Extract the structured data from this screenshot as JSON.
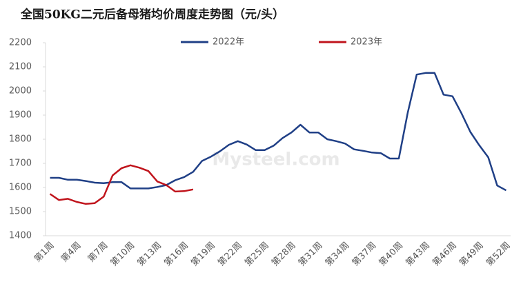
{
  "chart_data": {
    "type": "line",
    "title": "全国50KG二元后备母猪均价周度走势图（元/头）",
    "categories": [
      "第1周",
      null,
      null,
      "第4周",
      null,
      null,
      "第7周",
      null,
      null,
      "第10周",
      null,
      null,
      "第13周",
      null,
      null,
      "第16周",
      null,
      null,
      "第19周",
      null,
      null,
      "第22周",
      null,
      null,
      "第25周",
      null,
      null,
      "第28周",
      null,
      null,
      "第31周",
      null,
      null,
      "第34周",
      null,
      null,
      "第37周",
      null,
      null,
      "第40周",
      null,
      null,
      "第43周",
      null,
      null,
      "第46周",
      null,
      null,
      "第49周",
      null,
      null,
      "第52周"
    ],
    "series": [
      {
        "name": "2022年",
        "color": "#1f3f86",
        "values": [
          1640,
          1640,
          1632,
          1632,
          1627,
          1620,
          1618,
          1622,
          1622,
          1596,
          1596,
          1596,
          1602,
          1610,
          1630,
          1643,
          1665,
          1710,
          1728,
          1750,
          1777,
          1792,
          1778,
          1755,
          1755,
          1773,
          1805,
          1828,
          1860,
          1828,
          1828,
          1800,
          1792,
          1782,
          1758,
          1752,
          1745,
          1742,
          1720,
          1720,
          1910,
          2068,
          2075,
          2075,
          1985,
          1978,
          1908,
          1830,
          1775,
          1725,
          1608,
          1588
        ]
      },
      {
        "name": "2023年",
        "color": "#c0141c",
        "values": [
          1573,
          1548,
          1553,
          1540,
          1532,
          1535,
          1562,
          1650,
          1680,
          1692,
          1682,
          1668,
          1625,
          1610,
          1583,
          1585,
          1592,
          null,
          null,
          null,
          null,
          null,
          null,
          null,
          null,
          null,
          null,
          null,
          null,
          null,
          null,
          null,
          null,
          null,
          null,
          null,
          null,
          null,
          null,
          null,
          null,
          null,
          null,
          null,
          null,
          null,
          null,
          null,
          null,
          null,
          null,
          null
        ]
      }
    ],
    "ylim": [
      1400,
      2200
    ],
    "yticks": [
      1400,
      1500,
      1600,
      1700,
      1800,
      1900,
      2000,
      2100,
      2200
    ],
    "watermark": "Mysteel.com"
  }
}
